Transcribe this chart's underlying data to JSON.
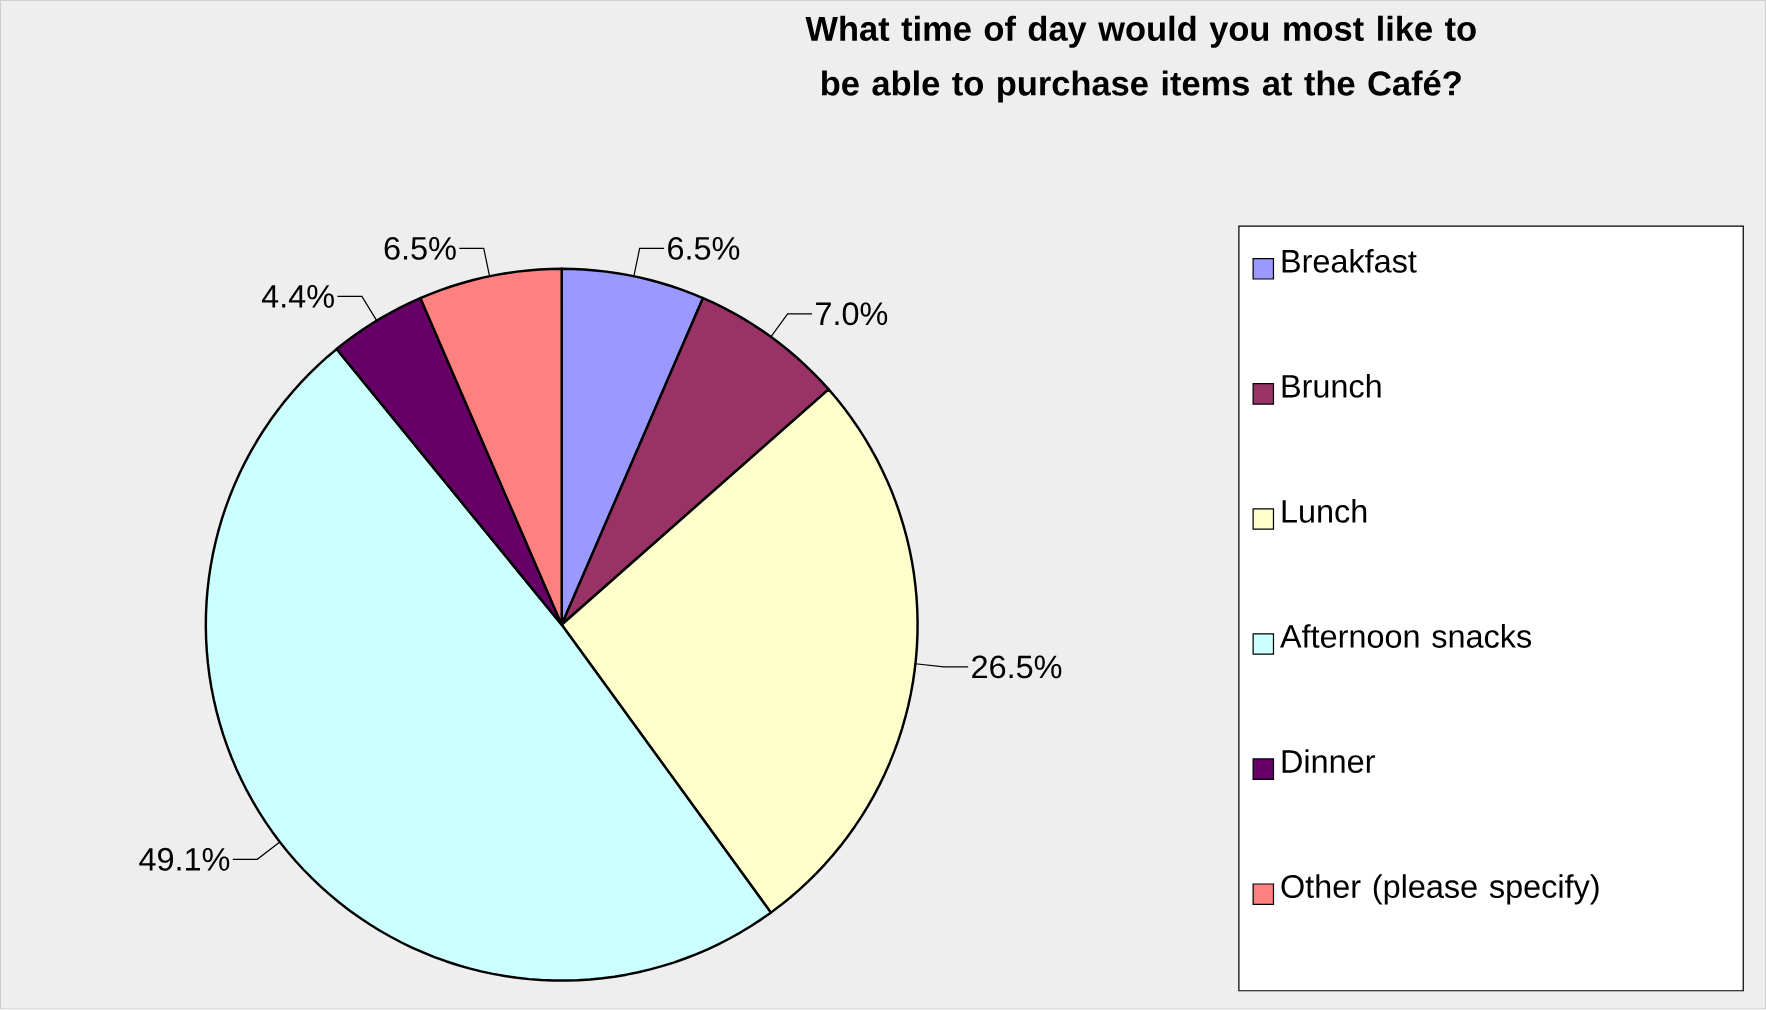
{
  "chart_data": {
    "type": "pie",
    "title": "What time of day would you most like to be able to purchase items at the Café?",
    "categories": [
      "Breakfast",
      "Brunch",
      "Lunch",
      "Afternoon snacks",
      "Dinner",
      "Other (please specify)"
    ],
    "values": [
      6.5,
      7.0,
      26.5,
      49.1,
      4.4,
      6.5
    ],
    "colors": [
      "#9999ff",
      "#993366",
      "#ffffcc",
      "#ccffff",
      "#660066",
      "#ff8080"
    ],
    "value_labels": [
      "6.5%",
      "7.0%",
      "26.5%",
      "49.1%",
      "4.4%",
      "6.5%"
    ],
    "legend": "right"
  }
}
